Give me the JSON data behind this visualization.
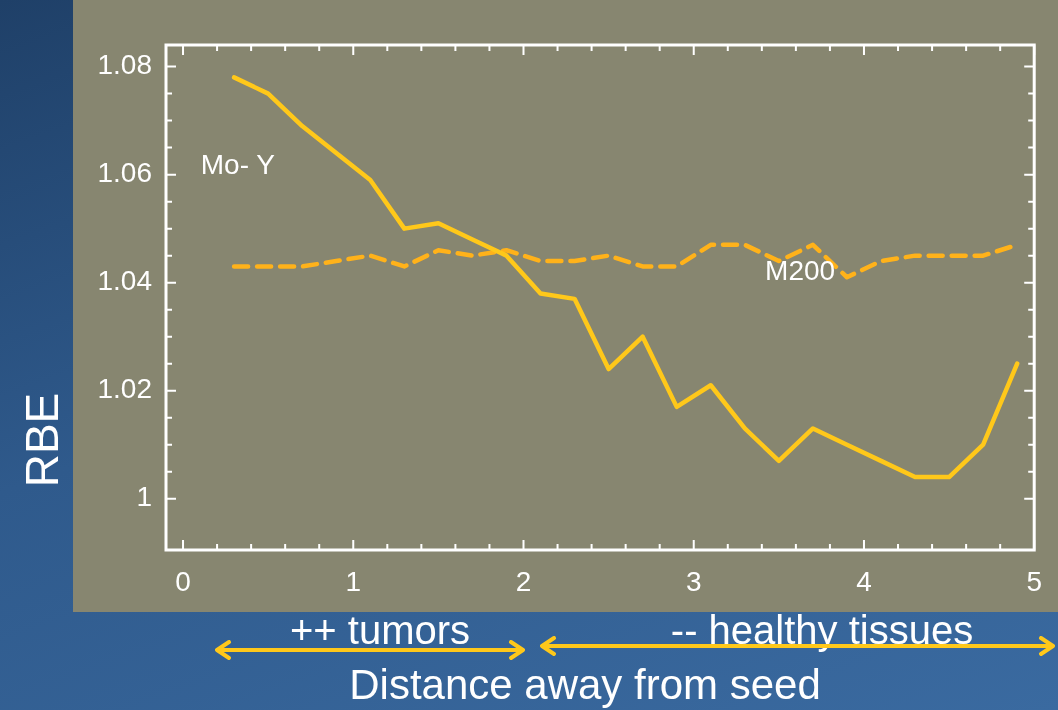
{
  "chart_data": {
    "type": "line",
    "xlabel": "Distance away from seed",
    "ylabel": "RBE",
    "x": [
      0.3,
      0.5,
      0.7,
      0.9,
      1.1,
      1.3,
      1.5,
      1.7,
      1.9,
      2.1,
      2.3,
      2.5,
      2.7,
      2.9,
      3.1,
      3.3,
      3.5,
      3.7,
      3.9,
      4.1,
      4.3,
      4.5,
      4.7,
      4.9
    ],
    "series": [
      {
        "name": "Mo- Y",
        "color": "#ffc81a",
        "line_style": "solid",
        "values": [
          1.078,
          1.075,
          1.069,
          1.064,
          1.059,
          1.05,
          1.051,
          1.048,
          1.045,
          1.038,
          1.037,
          1.024,
          1.03,
          1.017,
          1.021,
          1.013,
          1.007,
          1.013,
          1.01,
          1.007,
          1.004,
          1.004,
          1.01,
          1.025
        ]
      },
      {
        "name": "M200",
        "color": "#ffb21a",
        "line_style": "dashed",
        "values": [
          1.043,
          1.043,
          1.043,
          1.044,
          1.045,
          1.043,
          1.046,
          1.045,
          1.046,
          1.044,
          1.044,
          1.045,
          1.043,
          1.043,
          1.047,
          1.047,
          1.044,
          1.047,
          1.041,
          1.044,
          1.045,
          1.045,
          1.045,
          1.047
        ]
      }
    ],
    "xlim": [
      -0.1,
      5
    ],
    "ylim": [
      0.9905,
      1.084
    ],
    "xticks": [
      0,
      {
        "value": 0.2,
        "label": null
      },
      {
        "value": 0.4,
        "label": null
      },
      {
        "value": 0.6,
        "label": null
      },
      {
        "value": 0.8,
        "label": null
      },
      1,
      {
        "value": 1.2,
        "label": null
      },
      {
        "value": 1.4,
        "label": null
      },
      {
        "value": 1.6,
        "label": null
      },
      {
        "value": 1.8,
        "label": null
      },
      2,
      {
        "value": 2.2,
        "label": null
      },
      {
        "value": 2.4,
        "label": null
      },
      {
        "value": 2.6,
        "label": null
      },
      {
        "value": 2.8,
        "label": null
      },
      3,
      {
        "value": 3.2,
        "label": null
      },
      {
        "value": 3.4,
        "label": null
      },
      {
        "value": 3.6,
        "label": null
      },
      {
        "value": 3.8,
        "label": null
      },
      4,
      {
        "value": 4.2,
        "label": null
      },
      {
        "value": 4.4,
        "label": null
      },
      {
        "value": 4.6,
        "label": null
      },
      {
        "value": 4.8,
        "label": null
      },
      5
    ],
    "yticks": [
      {
        "value": 1,
        "label": "1"
      },
      {
        "value": 1.005,
        "label": null
      },
      {
        "value": 1.01,
        "label": null
      },
      {
        "value": 1.015,
        "label": null
      },
      1.02,
      {
        "value": 1.025,
        "label": null
      },
      {
        "value": 1.03,
        "label": null
      },
      {
        "value": 1.035,
        "label": null
      },
      1.04,
      {
        "value": 1.045,
        "label": null
      },
      {
        "value": 1.05,
        "label": null
      },
      {
        "value": 1.055,
        "label": null
      },
      1.06,
      {
        "value": 1.065,
        "label": null
      },
      {
        "value": 1.07,
        "label": null
      },
      {
        "value": 1.075,
        "label": null
      },
      1.08
    ],
    "grid": false,
    "marker": "none",
    "annotations": [
      "++ tumors",
      "-- healthy tissues"
    ]
  }
}
